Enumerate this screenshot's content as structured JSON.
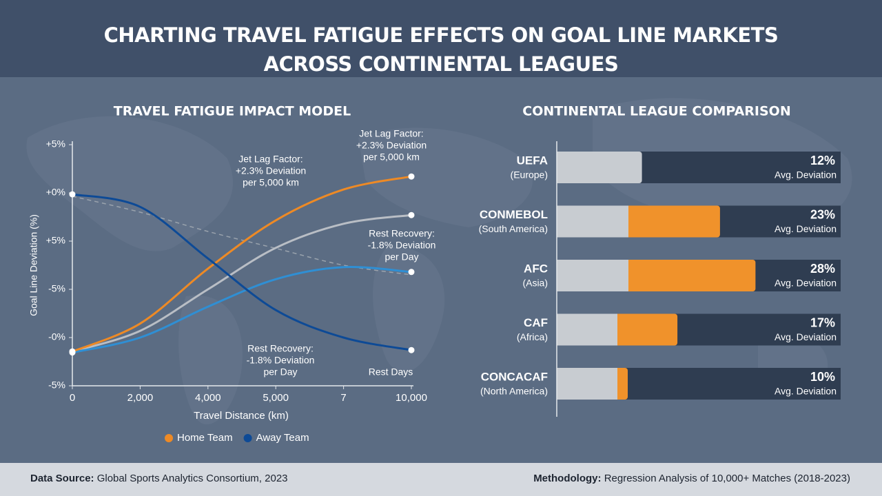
{
  "title": "CHARTING TRAVEL FATIGUE EFFECTS ON GOAL LINE MARKETS ACROSS CONTINENTAL LEAGUES",
  "chart_data": [
    {
      "type": "line",
      "title": "TRAVEL FATIGUE IMPACT MODEL",
      "x_label": "Travel Distance (km)",
      "y_label": "Goal Line Deviation (%)",
      "categories": [
        "0",
        "2,000",
        "4,000",
        "5,000",
        "7",
        "10,000"
      ],
      "ylim": [
        0,
        5
      ],
      "yticks": [
        {
          "value": 5,
          "label": "+5%"
        },
        {
          "value": 4,
          "label": "+0%"
        },
        {
          "value": 3,
          "label": "+5%"
        },
        {
          "value": 2,
          "label": "-5%"
        },
        {
          "value": 1,
          "label": "-0%"
        },
        {
          "value": 0,
          "label": "-5%"
        }
      ],
      "series": [
        {
          "color": "#9aa3ad",
          "dashed": true,
          "values": [
            3.93,
            3.6,
            3.2,
            2.85,
            2.5,
            2.3
          ]
        },
        {
          "color": "#b9bec5",
          "values": [
            0.71,
            1.14,
            2.0,
            2.86,
            3.36,
            3.54
          ]
        },
        {
          "color": "#2f8fd4",
          "values": [
            0.69,
            1.0,
            1.64,
            2.21,
            2.46,
            2.36
          ]
        },
        {
          "name": "Home Team",
          "color": "#ee8a25",
          "values": [
            0.71,
            1.29,
            2.43,
            3.43,
            4.07,
            4.34
          ]
        },
        {
          "name": "Away Team",
          "color": "#0d4a96",
          "values": [
            3.97,
            3.71,
            2.64,
            1.57,
            1.0,
            0.74
          ]
        }
      ],
      "annotations": [
        [
          "Jet Lag Factor:",
          "+2.3% Deviation",
          "per 5,000 km"
        ],
        [
          "Jet Lag Factor:",
          "+2.3% Deviation",
          "per 5,000 km"
        ],
        [
          "Rest Recovery:",
          "-1.8% Deviation",
          "per Day"
        ],
        [
          "Rest Recovery:",
          "-1.8% Deviation",
          "per Day"
        ],
        [
          "Rest Days"
        ]
      ]
    },
    {
      "type": "hbar",
      "title": "CONTINENTAL LEAGUE COMPARISON",
      "categories": [
        "UEFA",
        "CONMEBOL",
        "AFC",
        "CAF",
        "CONCACAF"
      ],
      "category_sublabels": [
        "(Europe)",
        "(South America)",
        "(Asia)",
        "(Africa)",
        "(North America)"
      ],
      "values": [
        12,
        23,
        28,
        17,
        10
      ],
      "value_labels": [
        "12%",
        "23%",
        "28%",
        "17%",
        "10%"
      ],
      "value_caption": "Avg. Deviation",
      "colors": [
        "#c8ccd1",
        "#f0922b",
        "#f0922b",
        "#f0922b",
        "#f0922b"
      ],
      "xlim": [
        0,
        40
      ]
    }
  ],
  "footer": {
    "source_label": "Data Source:",
    "source": "Global Sports Analytics Consortium, 2023",
    "method_label": "Methodology:",
    "method": "Regression Analysis of 10,000+ Matches (2018-2023)"
  }
}
